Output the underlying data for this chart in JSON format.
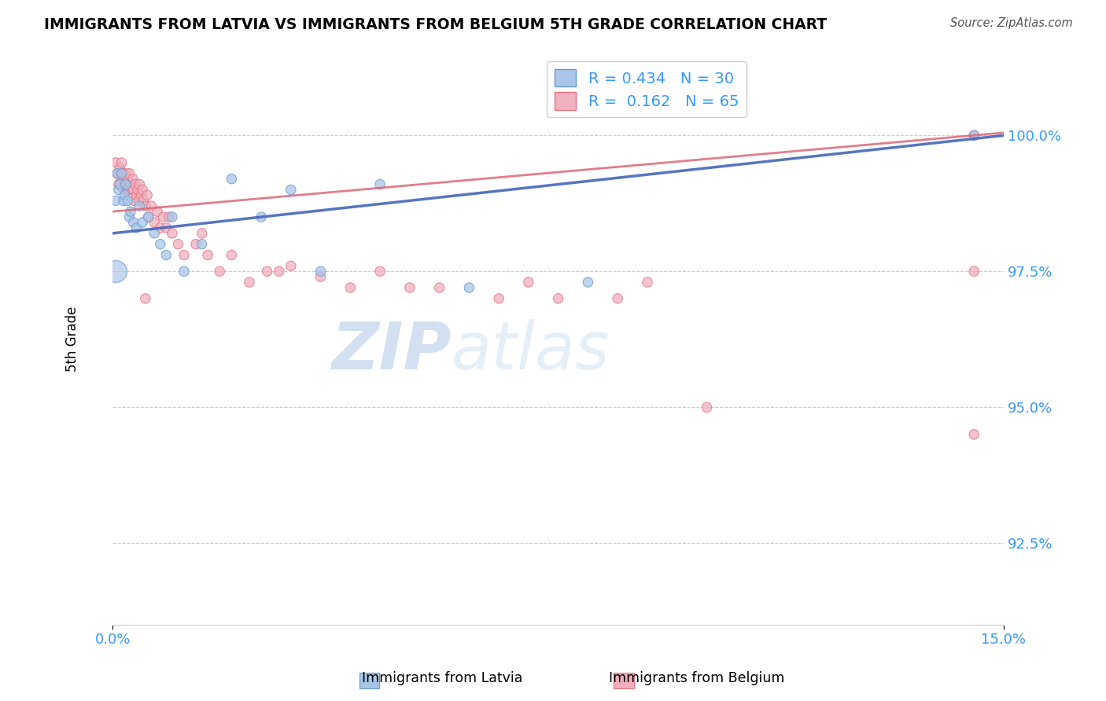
{
  "title": "IMMIGRANTS FROM LATVIA VS IMMIGRANTS FROM BELGIUM 5TH GRADE CORRELATION CHART",
  "source_text": "Source: ZipAtlas.com",
  "ylabel": "5th Grade",
  "xlim": [
    0.0,
    15.0
  ],
  "ylim": [
    91.0,
    101.5
  ],
  "yticks": [
    92.5,
    95.0,
    97.5,
    100.0
  ],
  "ytick_labels": [
    "92.5%",
    "95.0%",
    "97.5%",
    "100.0%"
  ],
  "xtick_labels": [
    "0.0%",
    "15.0%"
  ],
  "legend_R_latvia": "0.434",
  "legend_N_latvia": "30",
  "legend_R_belgium": "0.162",
  "legend_N_belgium": "65",
  "latvia_fill": "#aac5e8",
  "belgium_fill": "#f0b0c0",
  "latvia_edge": "#6699cc",
  "belgium_edge": "#e87080",
  "latvia_line": "#4466bb",
  "belgium_line": "#dd6677",
  "background_color": "#ffffff",
  "grid_color": "#cccccc",
  "watermark_color": "#c8d8ee",
  "latvia_scatter_x": [
    0.05,
    0.08,
    0.1,
    0.12,
    0.15,
    0.18,
    0.2,
    0.22,
    0.25,
    0.28,
    0.3,
    0.35,
    0.4,
    0.45,
    0.5,
    0.6,
    0.7,
    0.8,
    0.9,
    1.0,
    1.2,
    1.5,
    2.0,
    2.5,
    3.0,
    3.5,
    4.5,
    6.0,
    8.0,
    14.5
  ],
  "latvia_scatter_y": [
    98.8,
    99.3,
    99.0,
    99.1,
    99.3,
    98.8,
    98.9,
    99.1,
    98.8,
    98.5,
    98.6,
    98.4,
    98.3,
    98.7,
    98.4,
    98.5,
    98.2,
    98.0,
    97.8,
    98.5,
    97.5,
    98.0,
    99.2,
    98.5,
    99.0,
    97.5,
    99.1,
    97.2,
    97.3,
    100.0
  ],
  "latvia_scatter_s": [
    80,
    80,
    80,
    80,
    80,
    80,
    80,
    80,
    80,
    80,
    80,
    80,
    80,
    80,
    80,
    80,
    80,
    80,
    80,
    80,
    80,
    80,
    80,
    80,
    80,
    80,
    80,
    80,
    80,
    80
  ],
  "belgium_scatter_x": [
    0.05,
    0.08,
    0.1,
    0.12,
    0.14,
    0.15,
    0.16,
    0.18,
    0.19,
    0.2,
    0.22,
    0.24,
    0.25,
    0.26,
    0.28,
    0.3,
    0.32,
    0.34,
    0.35,
    0.36,
    0.38,
    0.4,
    0.42,
    0.44,
    0.45,
    0.48,
    0.5,
    0.52,
    0.55,
    0.58,
    0.6,
    0.65,
    0.7,
    0.75,
    0.8,
    0.85,
    0.9,
    0.95,
    1.0,
    1.1,
    1.2,
    1.4,
    1.6,
    1.8,
    2.0,
    2.3,
    2.6,
    3.0,
    3.5,
    4.0,
    4.5,
    5.5,
    6.5,
    7.0,
    8.5,
    9.0,
    1.5,
    2.8,
    0.55,
    5.0,
    7.5,
    14.5,
    14.5,
    14.5,
    10.0
  ],
  "belgium_scatter_y": [
    99.5,
    99.3,
    99.1,
    99.4,
    99.2,
    99.5,
    99.3,
    99.2,
    99.0,
    99.1,
    99.3,
    99.0,
    99.2,
    99.0,
    99.3,
    99.1,
    99.0,
    99.2,
    99.0,
    98.8,
    99.1,
    98.9,
    99.0,
    98.8,
    99.1,
    98.9,
    99.0,
    98.8,
    98.7,
    98.9,
    98.5,
    98.7,
    98.4,
    98.6,
    98.3,
    98.5,
    98.3,
    98.5,
    98.2,
    98.0,
    97.8,
    98.0,
    97.8,
    97.5,
    97.8,
    97.3,
    97.5,
    97.6,
    97.4,
    97.2,
    97.5,
    97.2,
    97.0,
    97.3,
    97.0,
    97.3,
    98.2,
    97.5,
    97.0,
    97.2,
    97.0,
    100.0,
    97.5,
    94.5,
    95.0
  ],
  "belgium_scatter_s": [
    80,
    80,
    80,
    80,
    80,
    80,
    80,
    80,
    80,
    80,
    80,
    80,
    80,
    80,
    80,
    80,
    80,
    80,
    80,
    80,
    80,
    80,
    80,
    80,
    80,
    80,
    80,
    80,
    80,
    80,
    80,
    80,
    80,
    80,
    80,
    80,
    80,
    80,
    80,
    80,
    80,
    80,
    80,
    80,
    80,
    80,
    80,
    80,
    80,
    80,
    80,
    80,
    80,
    80,
    80,
    80,
    80,
    80,
    80,
    80,
    80,
    80,
    80,
    80,
    80
  ],
  "latvia_large_x": [
    0.05
  ],
  "latvia_large_y": [
    97.5
  ],
  "latvia_large_s": [
    400
  ],
  "latvia_line_x0": 0.0,
  "latvia_line_y0": 98.2,
  "latvia_line_x1": 15.0,
  "latvia_line_y1": 100.0,
  "belgium_line_x0": 0.0,
  "belgium_line_y0": 98.6,
  "belgium_line_x1": 15.0,
  "belgium_line_y1": 100.05
}
